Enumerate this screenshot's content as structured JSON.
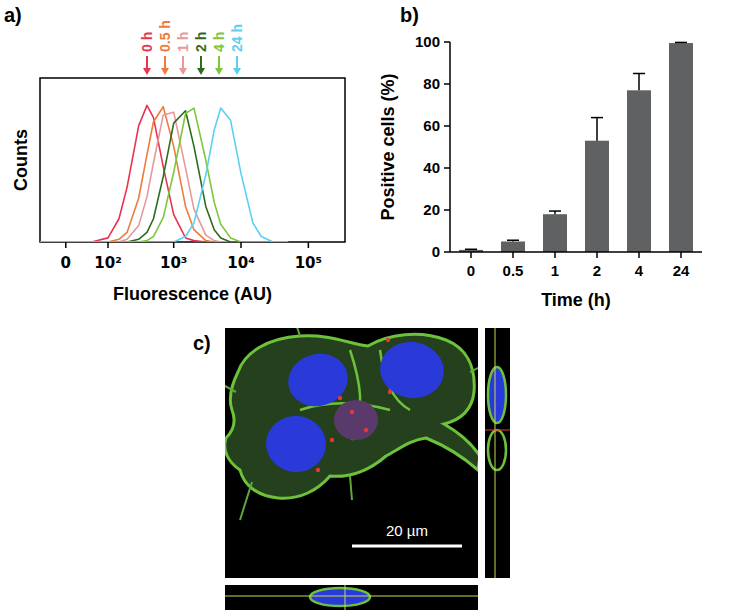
{
  "chart_data": [
    {
      "type": "line",
      "title": "a)",
      "x_label": "Fluorescence (AU)",
      "y_label": "Counts",
      "log": "x",
      "xlim": [
        -50,
        350000
      ],
      "ylim": [
        0,
        120
      ],
      "xticks": [
        0,
        {
          "value": 100,
          "label": "10²"
        },
        {
          "value": 1000,
          "label": "10³"
        },
        {
          "value": 10000,
          "label": "10⁴"
        },
        {
          "value": 100000,
          "label": "10⁵"
        }
      ],
      "tick_labels": "x",
      "legend": "top",
      "grid": false,
      "x": [
        -50,
        0,
        50,
        100,
        150,
        200,
        300,
        400,
        500,
        700,
        1000,
        1500,
        2000,
        3000,
        4000,
        5000,
        7000,
        10000,
        15000,
        20000,
        30000,
        50000
      ],
      "series": [
        {
          "name": "0 h",
          "color": "#e8344e",
          "values": [
            0,
            0,
            0,
            3,
            17,
            40,
            85,
            100,
            91,
            55,
            20,
            3,
            1,
            0,
            0,
            0,
            0,
            0,
            0,
            0,
            0,
            0
          ]
        },
        {
          "name": "0.5 h",
          "color": "#f07a3c",
          "values": [
            0,
            0,
            0,
            0,
            2,
            7,
            32,
            64,
            88,
            99,
            70,
            26,
            9,
            1,
            0,
            0,
            0,
            0,
            0,
            0,
            0,
            0
          ]
        },
        {
          "name": "1 h",
          "color": "#e8989a",
          "values": [
            0,
            0,
            0,
            0,
            0,
            2,
            12,
            33,
            58,
            93,
            95,
            54,
            24,
            5,
            1,
            0,
            0,
            0,
            0,
            0,
            0,
            0
          ]
        },
        {
          "name": "2 h",
          "color": "#2f6b1f",
          "values": [
            0,
            0,
            0,
            0,
            0,
            0,
            2,
            7,
            17,
            48,
            87,
            96,
            70,
            26,
            9,
            3,
            0,
            0,
            0,
            0,
            0,
            0
          ]
        },
        {
          "name": "4 h",
          "color": "#7cc83a",
          "values": [
            0,
            0,
            0,
            0,
            0,
            0,
            0,
            1,
            4,
            18,
            51,
            94,
            98,
            60,
            29,
            13,
            3,
            0,
            0,
            0,
            0,
            0
          ]
        },
        {
          "name": "24 h",
          "color": "#5cd0f0",
          "values": [
            0,
            0,
            0,
            0,
            0,
            0,
            0,
            0,
            0,
            0,
            0,
            4,
            14,
            49,
            82,
            98,
            89,
            50,
            14,
            4,
            0,
            0
          ]
        }
      ]
    },
    {
      "type": "bar",
      "title": "b)",
      "x_label": "Time (h)",
      "y_label": "Positive cells (%)",
      "categories": [
        "0",
        "0.5",
        "1",
        "2",
        "4",
        "24"
      ],
      "values": [
        1,
        5,
        18,
        53,
        77,
        99.5
      ],
      "errors": [
        0.3,
        0.6,
        1.5,
        11,
        8,
        0.3
      ],
      "color": "#606163",
      "ylim": [
        0,
        100
      ],
      "yticks": [
        0,
        20,
        40,
        60,
        80,
        100
      ],
      "grid": false
    }
  ],
  "image": {
    "title": "c)",
    "scale_bar": "20 µm"
  }
}
